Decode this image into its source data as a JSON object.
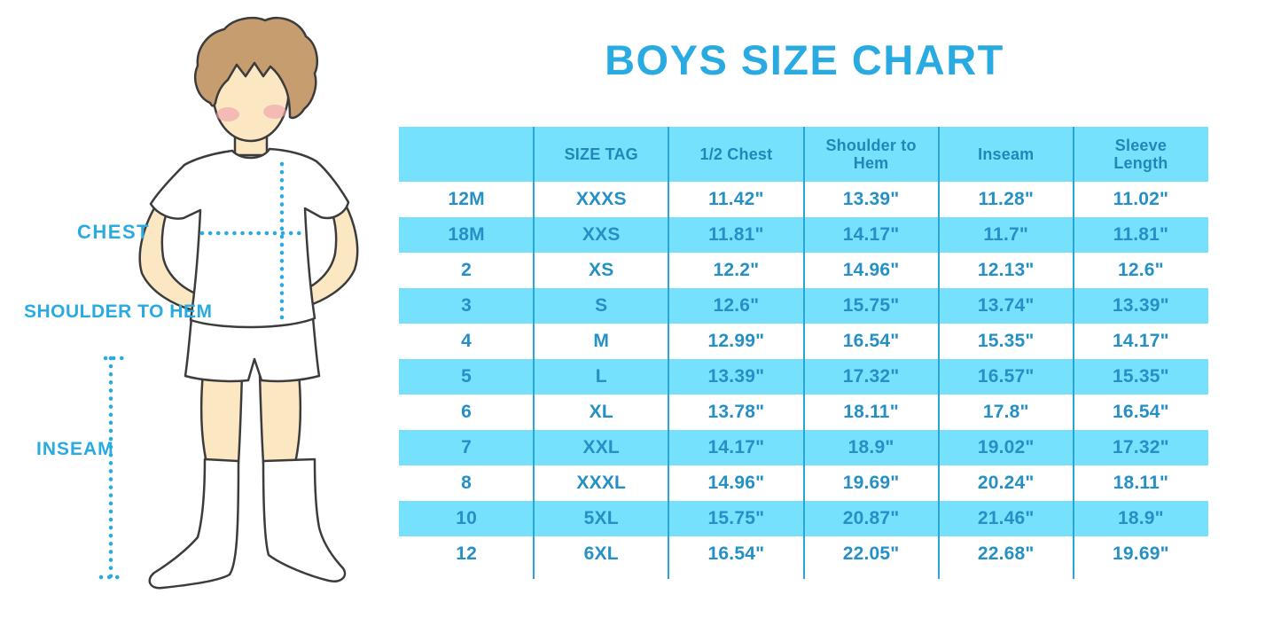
{
  "title": "BOYS SIZE CHART",
  "figure": {
    "description": "cartoon-boy-measurement-diagram",
    "labels": {
      "chest": "CHEST",
      "shoulder_to_hem": "SHOULDER TO HEM",
      "inseam": "INSEAM"
    }
  },
  "chart_data": {
    "type": "table",
    "title": "BOYS SIZE CHART",
    "headers": [
      "",
      "SIZE TAG",
      "1/2 Chest",
      "Shoulder to Hem",
      "Inseam",
      "Sleeve Length"
    ],
    "rows": [
      [
        "12M",
        "XXXS",
        "11.42\"",
        "13.39\"",
        "11.28\"",
        "11.02\""
      ],
      [
        "18M",
        "XXS",
        "11.81\"",
        "14.17\"",
        "11.7\"",
        "11.81\""
      ],
      [
        "2",
        "XS",
        "12.2\"",
        "14.96\"",
        "12.13\"",
        "12.6\""
      ],
      [
        "3",
        "S",
        "12.6\"",
        "15.75\"",
        "13.74\"",
        "13.39\""
      ],
      [
        "4",
        "M",
        "12.99\"",
        "16.54\"",
        "15.35\"",
        "14.17\""
      ],
      [
        "5",
        "L",
        "13.39\"",
        "17.32\"",
        "16.57\"",
        "15.35\""
      ],
      [
        "6",
        "XL",
        "13.78\"",
        "18.11\"",
        "17.8\"",
        "16.54\""
      ],
      [
        "7",
        "XXL",
        "14.17\"",
        "18.9\"",
        "19.02\"",
        "17.32\""
      ],
      [
        "8",
        "XXXL",
        "14.96\"",
        "19.69\"",
        "20.24\"",
        "18.11\""
      ],
      [
        "10",
        "5XL",
        "15.75\"",
        "20.87\"",
        "21.46\"",
        "18.9\""
      ],
      [
        "12",
        "6XL",
        "16.54\"",
        "22.05\"",
        "22.68\"",
        "19.69\""
      ]
    ],
    "layout": {
      "striped": true,
      "stripe_pattern": "header cyan, then alternating white/cyan",
      "outer_border": false
    }
  },
  "colors": {
    "accent_blue": "#29ABE2",
    "table_fill_cyan": "#76E1FC",
    "table_divider": "#2BA5D8",
    "cell_text": "#2590C5",
    "header_text": "#2187B8",
    "skin": "#FBE7C2",
    "hair": "#C69D6F",
    "cheek": "#F0A3AE",
    "outline": "#3C3C3C"
  }
}
